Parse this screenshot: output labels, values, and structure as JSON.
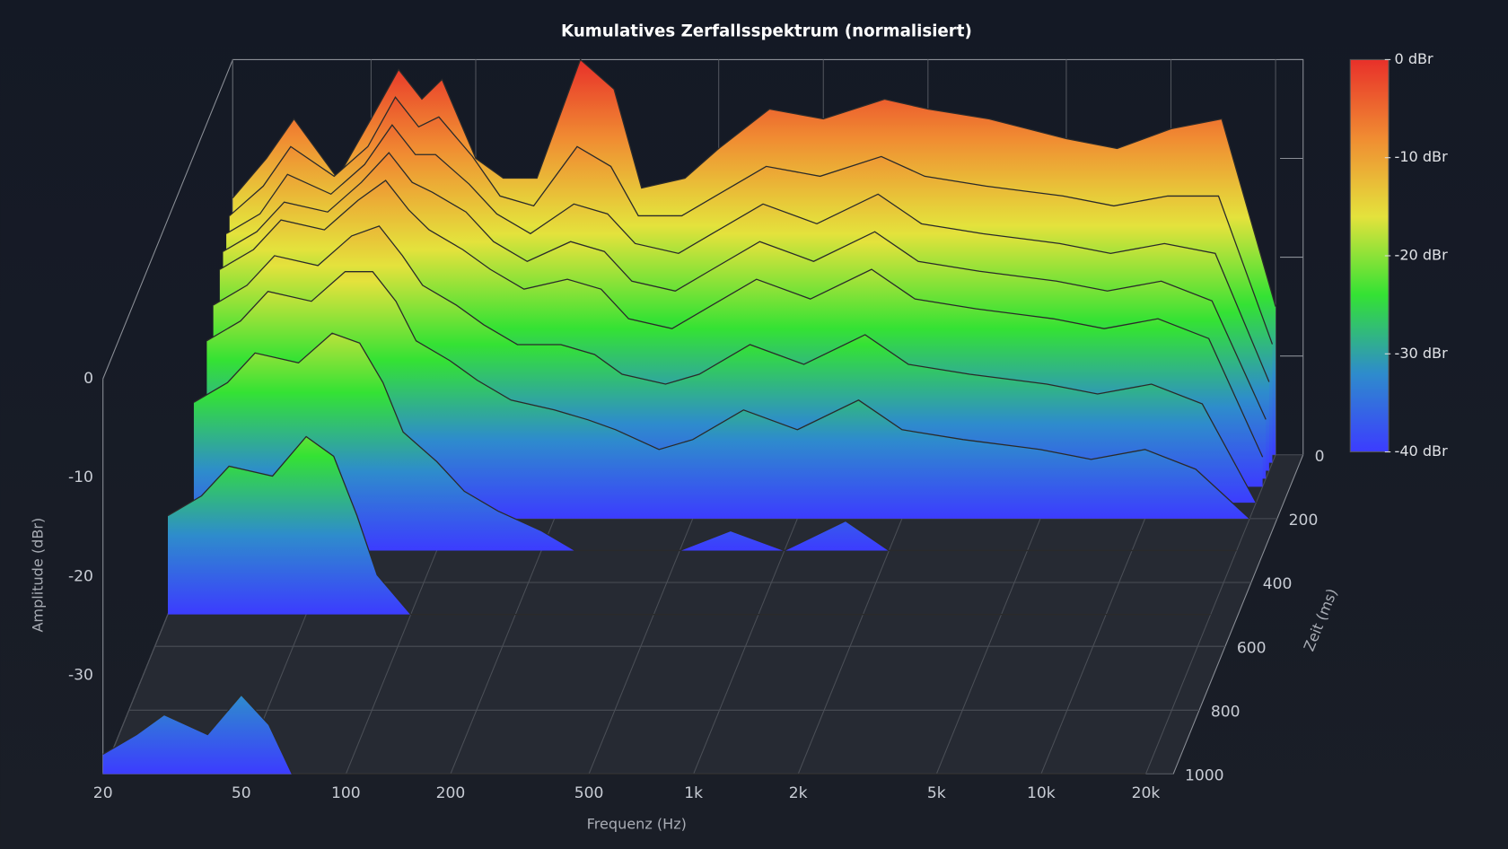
{
  "chart_data": {
    "type": "waterfall",
    "title": "Kumulatives Zerfallsspektrum (normalisiert)",
    "xlabel": "Frequenz (Hz)",
    "ylabel": "Amplitude (dBr)",
    "zlabel": "Zeit (ms)",
    "x": [
      20,
      25,
      30,
      40,
      50,
      60,
      70,
      80,
      100,
      120,
      150,
      200,
      250,
      300,
      400,
      500,
      700,
      1000,
      1500,
      2000,
      3000,
      5000,
      7000,
      10000,
      14000,
      20000
    ],
    "xlim": [
      20,
      24000
    ],
    "xticks": [
      20,
      50,
      100,
      200,
      500,
      {
        "value": 1000,
        "label": "1k"
      },
      {
        "value": 2000,
        "label": "2k"
      },
      {
        "value": 5000,
        "label": "5k"
      },
      {
        "value": 10000,
        "label": "10k"
      },
      {
        "value": 20000,
        "label": "20k"
      }
    ],
    "xscale": "log",
    "ylim": [
      -40,
      0
    ],
    "yticks": [
      0,
      -10,
      -20,
      -30
    ],
    "zlim": [
      0,
      1000
    ],
    "zticks": [
      0,
      200,
      400,
      600,
      800,
      1000
    ],
    "clim": [
      -40,
      0
    ],
    "cticks": [
      {
        "value": 0,
        "label": "0 dBr"
      },
      {
        "value": -10,
        "label": "-10 dBr"
      },
      {
        "value": -20,
        "label": "-20 dBr"
      },
      {
        "value": -30,
        "label": "-30 dBr"
      },
      {
        "value": -40,
        "label": "-40 dBr"
      }
    ],
    "colormap": [
      "#e8302a",
      "#f08c32",
      "#e4e23c",
      "#34e234",
      "#2e8ccc",
      "#3c3cff"
    ],
    "line_color": "#2a2a2a",
    "grid": true,
    "series": [
      {
        "time": 0,
        "values": [
          -14,
          -10,
          -6,
          -12,
          -6,
          -1,
          -4,
          -2,
          -10,
          -12,
          -12,
          0,
          -3,
          -13,
          -12,
          -9,
          -5,
          -6,
          -4,
          -5,
          -6,
          -8,
          -9,
          -7,
          -6,
          -25
        ]
      },
      {
        "time": 25,
        "values": [
          -15,
          -12,
          -8,
          -11,
          -8,
          -3,
          -6,
          -5,
          -9,
          -13,
          -14,
          -8,
          -10,
          -15,
          -15,
          -13,
          -10,
          -11,
          -9,
          -11,
          -12,
          -13,
          -14,
          -13,
          -13,
          -28
        ]
      },
      {
        "time": 50,
        "values": [
          -16,
          -14,
          -10,
          -12,
          -9,
          -5,
          -8,
          -8,
          -11,
          -14,
          -16,
          -13,
          -14,
          -17,
          -18,
          -16,
          -13,
          -15,
          -12,
          -15,
          -16,
          -17,
          -18,
          -17,
          -18,
          -31
        ]
      },
      {
        "time": 75,
        "values": [
          -17,
          -15,
          -12,
          -13,
          -10,
          -7,
          -10,
          -11,
          -13,
          -16,
          -18,
          -16,
          -17,
          -20,
          -21,
          -19,
          -16,
          -18,
          -15,
          -18,
          -19,
          -20,
          -21,
          -20,
          -22,
          -34
        ]
      },
      {
        "time": 100,
        "values": [
          -18,
          -16,
          -13,
          -14,
          -11,
          -9,
          -12,
          -14,
          -16,
          -18,
          -20,
          -19,
          -20,
          -23,
          -24,
          -22,
          -19,
          -21,
          -18,
          -21,
          -22,
          -23,
          -24,
          -23,
          -25,
          -37
        ]
      },
      {
        "time": 150,
        "values": [
          -20,
          -18,
          -15,
          -16,
          -13,
          -12,
          -15,
          -18,
          -20,
          -22,
          -24,
          -24,
          -25,
          -27,
          -28,
          -27,
          -24,
          -26,
          -23,
          -26,
          -27,
          -28,
          -29,
          -28,
          -30,
          -40
        ]
      },
      {
        "time": 200,
        "values": [
          -22,
          -20,
          -17,
          -18,
          -15,
          -15,
          -18,
          -22,
          -24,
          -26,
          -28,
          -29,
          -30,
          -31,
          -33,
          -32,
          -29,
          -31,
          -28,
          -31,
          -32,
          -33,
          -34,
          -33,
          -35,
          -40
        ]
      },
      {
        "time": 300,
        "values": [
          -25,
          -23,
          -20,
          -21,
          -18,
          -19,
          -23,
          -28,
          -31,
          -34,
          -36,
          -38,
          -40,
          -40,
          -40,
          -40,
          -38,
          -40,
          -37,
          -40,
          -40,
          -40,
          -40,
          -40,
          -40,
          -40
        ]
      },
      {
        "time": 500,
        "values": [
          -30,
          -28,
          -25,
          -26,
          -22,
          -24,
          -30,
          -36,
          -40,
          -40,
          -40,
          -40,
          -40,
          -40,
          -40,
          -40,
          -40,
          -40,
          -40,
          -40,
          -40,
          -40,
          -40,
          -40,
          -40,
          -40
        ]
      },
      {
        "time": 1000,
        "values": [
          -38,
          -36,
          -34,
          -36,
          -32,
          -35,
          -40,
          -40,
          -40,
          -40,
          -40,
          -40,
          -40,
          -40,
          -40,
          -40,
          -40,
          -40,
          -40,
          -40,
          -40,
          -40,
          -40,
          -40,
          -40,
          -40
        ]
      }
    ]
  }
}
